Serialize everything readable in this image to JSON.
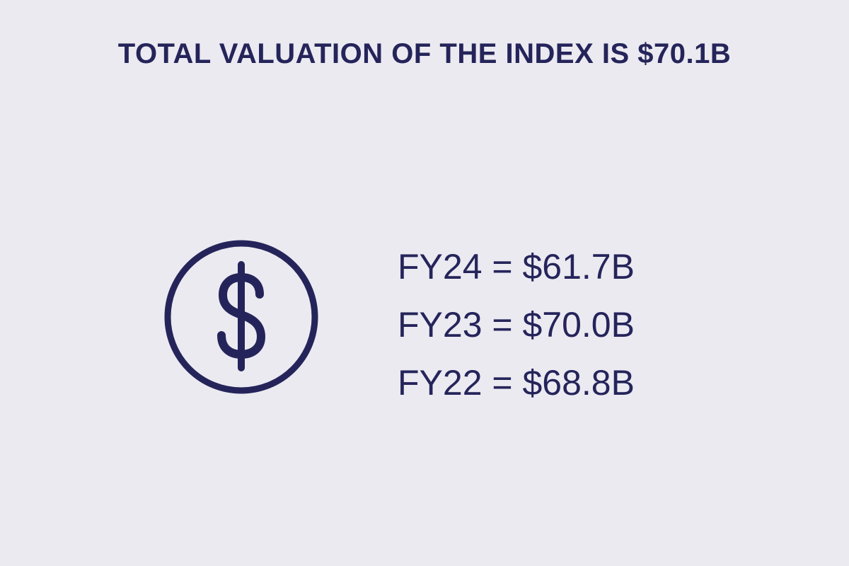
{
  "title": "TOTAL VALUATION OF THE INDEX IS $70.1B",
  "lines": [
    "FY24 = $61.7B",
    "FY23 = $70.0B",
    "FY22 = $68.8B"
  ]
}
